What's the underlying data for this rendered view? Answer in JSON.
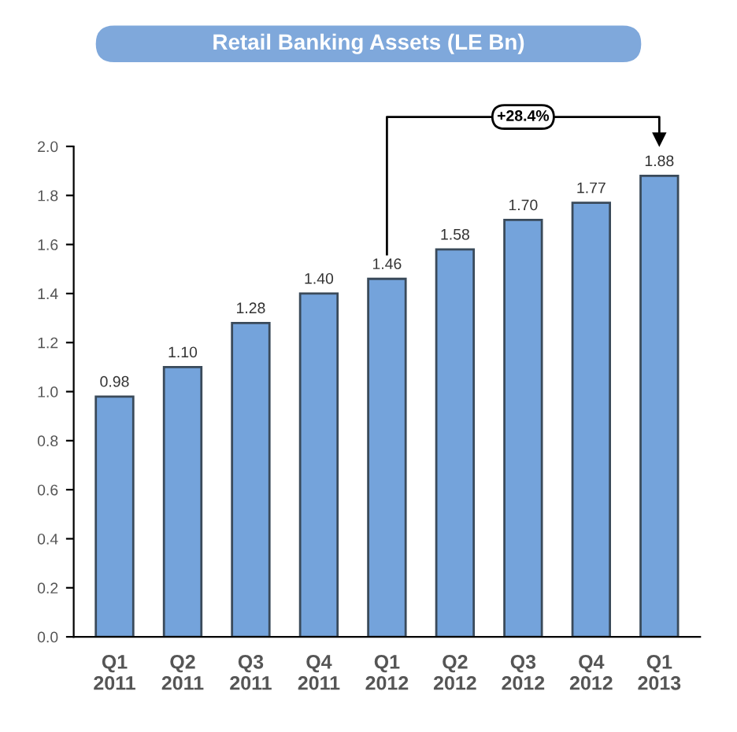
{
  "chart_data": {
    "type": "bar",
    "title": "Retail Banking Assets (LE Bn)",
    "categories": [
      "Q1\n2011",
      "Q2\n2011",
      "Q3\n2011",
      "Q4\n2011",
      "Q1\n2012",
      "Q2\n2012",
      "Q3\n2012",
      "Q4\n2012",
      "Q1\n2013"
    ],
    "values": [
      0.98,
      1.1,
      1.28,
      1.4,
      1.46,
      1.58,
      1.7,
      1.77,
      1.88
    ],
    "value_labels": [
      "0.98",
      "1.10",
      "1.28",
      "1.40",
      "1.46",
      "1.58",
      "1.70",
      "1.77",
      "1.88"
    ],
    "color": "#74a3db",
    "ylim": [
      0,
      2.0
    ],
    "yticks": [
      {
        "value": 0,
        "label": "0.0"
      },
      0.2,
      0.4,
      0.6,
      0.8,
      {
        "value": 1,
        "label": "1.0"
      },
      1.2,
      1.4,
      1.6,
      1.8,
      {
        "value": 2,
        "label": "2.0"
      }
    ],
    "annotations": [
      "+28.4%"
    ],
    "grid": false
  }
}
